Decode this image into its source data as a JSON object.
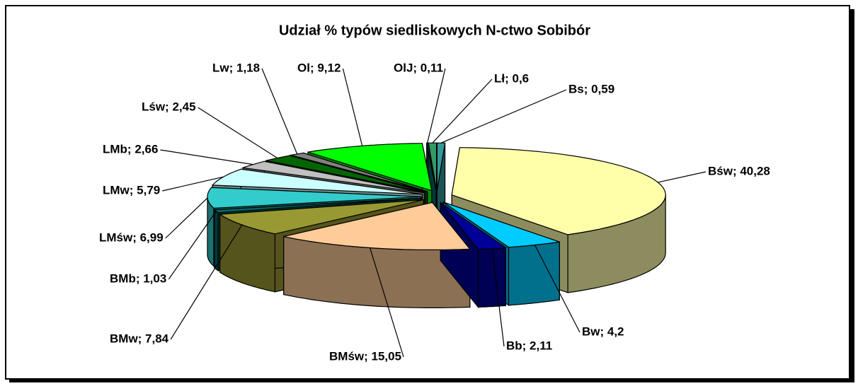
{
  "chart_data": {
    "type": "pie",
    "title": "Udział % typów siedliskowych N-ctwo Sobibór",
    "categories": [
      "Bs",
      "Bśw",
      "Bw",
      "Bb",
      "BMśw",
      "BMw",
      "BMb",
      "LMśw",
      "LMw",
      "LMb",
      "Lśw",
      "Lw",
      "Ol",
      "OlJ",
      "Lł"
    ],
    "values": [
      0.59,
      40.28,
      4.2,
      2.11,
      15.05,
      7.84,
      1.03,
      6.99,
      5.79,
      2.66,
      2.45,
      1.18,
      9.12,
      0.11,
      0.6
    ],
    "value_labels": [
      "Bs; 0,59",
      "Bśw; 40,28",
      "Bw; 4,2",
      "Bb; 2,11",
      "BMśw; 15,05",
      "BMw; 7,84",
      "BMb; 1,03",
      "LMśw; 6,99",
      "LMw; 5,79",
      "LMb; 2,66",
      "Lśw; 2,45",
      "Lw; 1,18",
      "Ol; 9,12",
      "OlJ; 0,11",
      "Lł; 0,6"
    ],
    "colors": [
      "#33999a",
      "#ffffaa",
      "#00ccff",
      "#000099",
      "#ffcc99",
      "#999933",
      "#006666",
      "#33cccc",
      "#ccffff",
      "#c0c0c0",
      "#006600",
      "#808080",
      "#00ff00",
      "#006666",
      "#339966"
    ]
  }
}
